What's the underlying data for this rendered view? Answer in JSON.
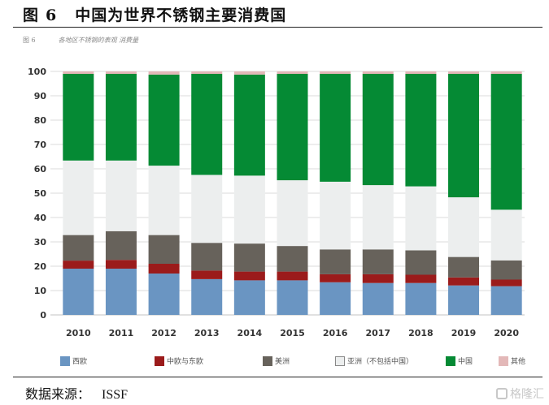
{
  "figure": {
    "label": "图",
    "number": "6",
    "title": "中国为世界不锈钢主要消费国",
    "inner_label": "图 6",
    "inner_caption": "各地区不锈钢的表观 消费量"
  },
  "source": {
    "label": "数据来源：",
    "value": "ISSF"
  },
  "watermark_logo": "格隆汇",
  "chart_data": {
    "type": "bar",
    "stacked": true,
    "title": "各地区不锈钢的表观 消费量",
    "xlabel": "",
    "ylabel": "",
    "ylim": [
      0,
      100
    ],
    "yticks": [
      0,
      10,
      20,
      30,
      40,
      50,
      60,
      70,
      80,
      90,
      100
    ],
    "grid": true,
    "legend_position": "bottom",
    "categories": [
      "2010",
      "2011",
      "2012",
      "2013",
      "2014",
      "2015",
      "2016",
      "2017",
      "2018",
      "2019",
      "2020"
    ],
    "series": [
      {
        "name": "西欧",
        "color": "#6a95c2",
        "values": [
          19.0,
          19.0,
          17.0,
          14.7,
          14.2,
          14.2,
          13.4,
          13.1,
          13.1,
          12.1,
          11.8
        ]
      },
      {
        "name": "中欧与东欧",
        "color": "#9b1b1b",
        "values": [
          3.3,
          3.6,
          4.0,
          3.5,
          3.6,
          3.6,
          3.3,
          3.6,
          3.4,
          3.3,
          2.7
        ]
      },
      {
        "name": "美洲",
        "color": "#67625b",
        "values": [
          10.5,
          11.8,
          11.8,
          11.4,
          11.5,
          10.5,
          10.2,
          10.2,
          10.0,
          8.4,
          7.9
        ]
      },
      {
        "name": "亚洲（不包括中国）",
        "color": "#eceeee",
        "values": [
          30.6,
          29.0,
          28.5,
          27.9,
          27.9,
          27.0,
          27.8,
          26.4,
          26.3,
          24.5,
          20.8
        ]
      },
      {
        "name": "中国",
        "color": "#058a34",
        "values": [
          35.6,
          35.6,
          37.4,
          41.5,
          41.5,
          43.7,
          44.3,
          45.7,
          46.2,
          50.7,
          55.8
        ]
      },
      {
        "name": "其他",
        "color": "#e3b8b8",
        "values": [
          1.0,
          1.0,
          1.3,
          1.0,
          1.3,
          1.0,
          1.0,
          1.0,
          1.0,
          1.0,
          1.0
        ]
      }
    ]
  }
}
